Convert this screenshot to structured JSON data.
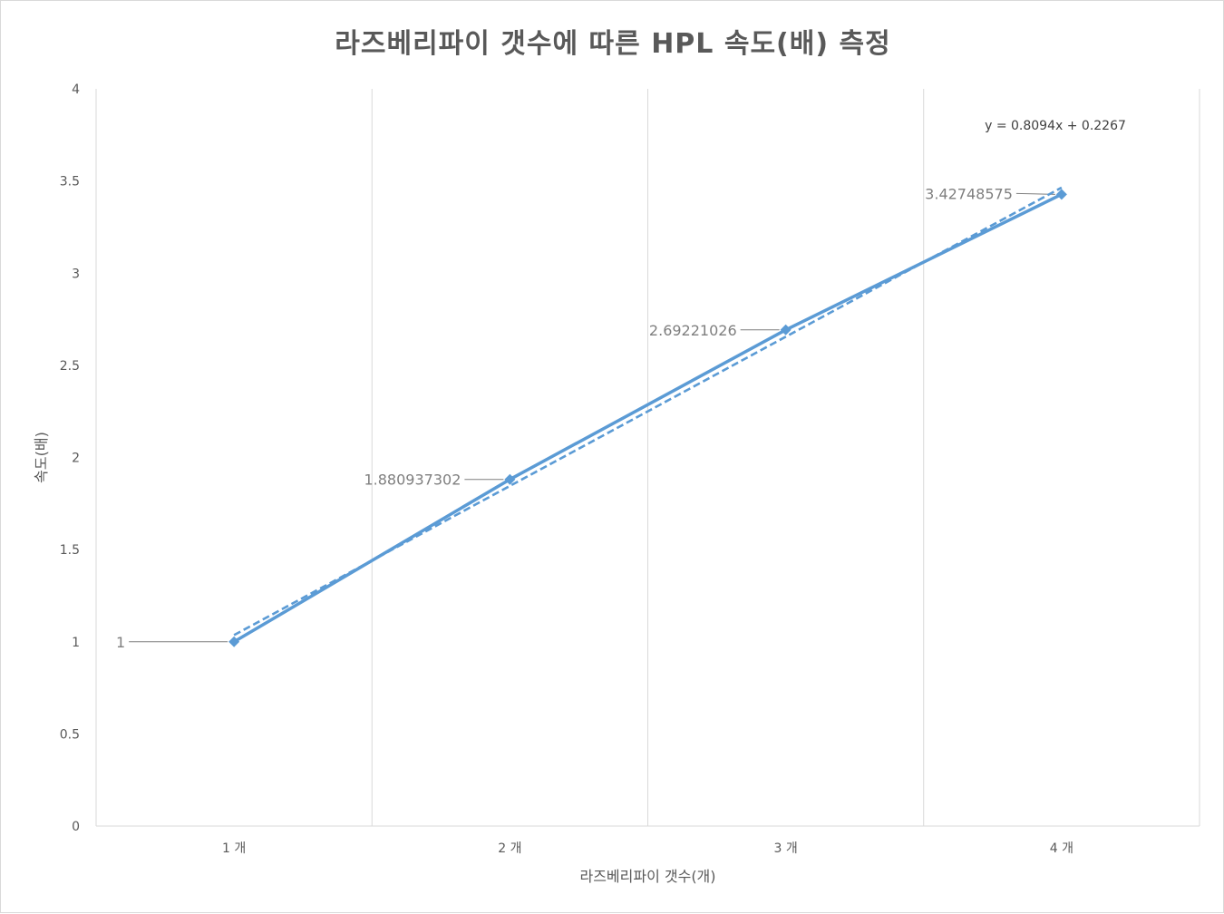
{
  "chart_data": {
    "type": "line",
    "title": "라즈베리파이 갯수에 따른 HPL 속도(배) 측정",
    "xlabel": "라즈베리파이 갯수(개)",
    "ylabel": "속도(배)",
    "categories": [
      "1 개",
      "2 개",
      "3 개",
      "4 개"
    ],
    "series": [
      {
        "values": [
          1,
          1.880937302,
          2.69221026,
          3.42748575
        ],
        "data_labels": [
          "1",
          "1.880937302",
          "2.69221026",
          "3.42748575"
        ],
        "color": "#5b9bd5",
        "marker": "diamond"
      }
    ],
    "trendline": {
      "type": "linear",
      "slope": 0.8094,
      "intercept": 0.2267,
      "equation_label": "y = 0.8094x + 0.2267",
      "style": "dashed",
      "color": "#5b9bd5"
    },
    "ylim": [
      0,
      4
    ],
    "yticks": [
      "0",
      "0.5",
      "1",
      "1.5",
      "2",
      "2.5",
      "3",
      "3.5",
      "4"
    ],
    "grid": "vertical category separators",
    "legend": "none"
  }
}
